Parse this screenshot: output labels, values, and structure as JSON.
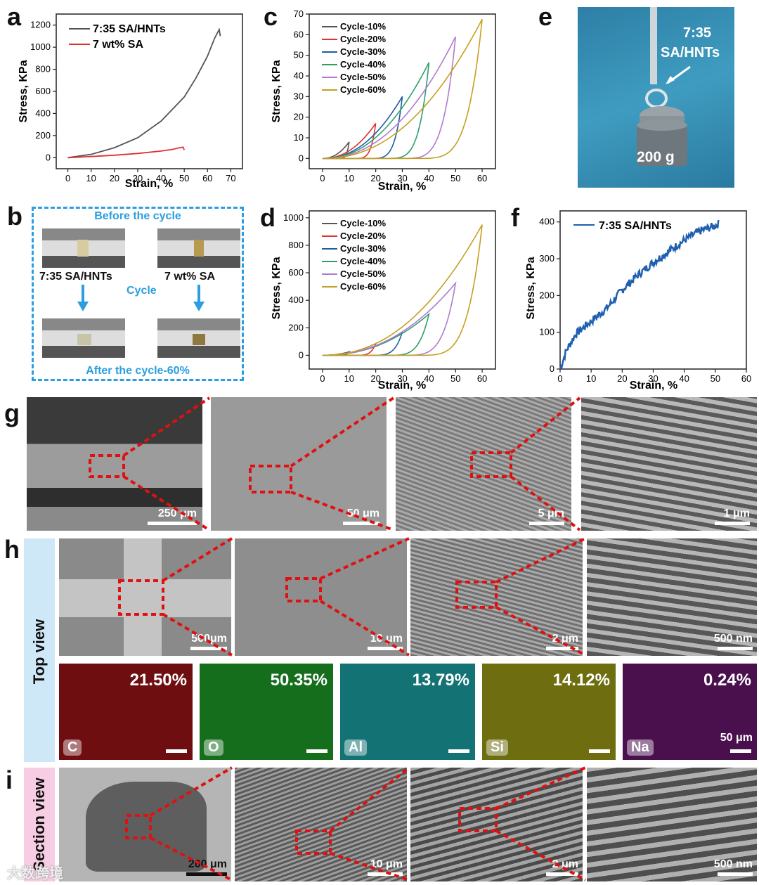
{
  "panels": {
    "a": "a",
    "b": "b",
    "c": "c",
    "d": "d",
    "e": "e",
    "f": "f",
    "g": "g",
    "h": "h",
    "i": "i"
  },
  "chart_a": {
    "ylabel": "Stress, KPa",
    "xlabel": "Strain, %",
    "yticks": [
      "0",
      "200",
      "400",
      "600",
      "800",
      "1000",
      "1200"
    ],
    "xticks": [
      "0",
      "10",
      "20",
      "30",
      "40",
      "50",
      "60",
      "70"
    ],
    "legend": [
      "7:35 SA/HNTs",
      "7 wt% SA"
    ]
  },
  "chart_c": {
    "ylabel": "Stress, KPa",
    "xlabel": "Strain, %",
    "yticks": [
      "0",
      "10",
      "20",
      "30",
      "40",
      "50",
      "60",
      "70"
    ],
    "xticks": [
      "0",
      "10",
      "20",
      "30",
      "40",
      "50",
      "60"
    ],
    "legend": [
      "Cycle-10%",
      "Cycle-20%",
      "Cycle-30%",
      "Cycle-40%",
      "Cycle-50%",
      "Cycle-60%"
    ]
  },
  "chart_d": {
    "ylabel": "Stress, KPa",
    "xlabel": "Strain, %",
    "yticks": [
      "0",
      "200",
      "400",
      "600",
      "800",
      "1000"
    ],
    "xticks": [
      "0",
      "10",
      "20",
      "30",
      "40",
      "50",
      "60"
    ],
    "legend": [
      "Cycle-10%",
      "Cycle-20%",
      "Cycle-30%",
      "Cycle-40%",
      "Cycle-50%",
      "Cycle-60%"
    ]
  },
  "chart_f": {
    "ylabel": "Stress, KPa",
    "xlabel": "Strain, %",
    "yticks": [
      "0",
      "100",
      "200",
      "300",
      "400"
    ],
    "xticks": [
      "0",
      "10",
      "20",
      "30",
      "40",
      "50",
      "60"
    ],
    "legend": [
      "7:35 SA/HNTs"
    ]
  },
  "panel_b": {
    "top": "Before the cycle",
    "left_label": "7:35 SA/HNTs",
    "right_label": "7 wt% SA",
    "middle": "Cycle",
    "bottom": "After the cycle-60%"
  },
  "panel_e": {
    "sample": "7:35",
    "sample2": "SA/HNTs",
    "weight": "200 g"
  },
  "panel_g": {
    "scales": [
      "250 μm",
      "50 μm",
      "5 μm",
      "1 μm"
    ]
  },
  "panel_h": {
    "side": "Top view",
    "scales": [
      "500μm",
      "10 μm",
      "2 μm",
      "500 nm"
    ],
    "eds": [
      {
        "el": "C",
        "pct": "21.50%",
        "color": "#b01818"
      },
      {
        "el": "O",
        "pct": "50.35%",
        "color": "#23a22a"
      },
      {
        "el": "Al",
        "pct": "13.79%",
        "color": "#1ca6a8"
      },
      {
        "el": "Si",
        "pct": "14.12%",
        "color": "#b4b41e"
      },
      {
        "el": "Na",
        "pct": "0.24%",
        "color": "#9a2a9a"
      }
    ],
    "eds_scale": "50 μm"
  },
  "panel_i": {
    "side": "Section view",
    "scales": [
      "200 μm",
      "10 μm",
      "2 μm",
      "500 nm"
    ]
  },
  "watermark": "大数跨境",
  "chart_data": [
    {
      "type": "line",
      "panel": "a",
      "xlabel": "Strain, %",
      "ylabel": "Stress, KPa",
      "xlim": [
        -5,
        75
      ],
      "ylim": [
        -100,
        1300
      ],
      "series": [
        {
          "name": "7:35 SA/HNTs",
          "color": "#555555",
          "x": [
            0,
            10,
            20,
            30,
            40,
            50,
            55,
            60,
            63,
            65,
            65.5
          ],
          "y": [
            0,
            30,
            90,
            180,
            330,
            550,
            720,
            920,
            1080,
            1160,
            1100
          ]
        },
        {
          "name": "7 wt% SA",
          "color": "#e03030",
          "x": [
            0,
            10,
            20,
            30,
            40,
            45,
            48,
            49.5,
            50
          ],
          "y": [
            0,
            10,
            22,
            38,
            60,
            75,
            90,
            95,
            70
          ]
        }
      ]
    },
    {
      "type": "line",
      "panel": "c",
      "xlabel": "Strain, %",
      "ylabel": "Stress, KPa",
      "xlim": [
        -5,
        65
      ],
      "ylim": [
        -5,
        70
      ],
      "series": [
        {
          "name": "Cycle-10%",
          "color": "#555555",
          "peak_x": 10,
          "peak_y": 8
        },
        {
          "name": "Cycle-20%",
          "color": "#e03030",
          "peak_x": 20,
          "peak_y": 17
        },
        {
          "name": "Cycle-30%",
          "color": "#1f5f9f",
          "peak_x": 30,
          "peak_y": 30
        },
        {
          "name": "Cycle-40%",
          "color": "#2ea06a",
          "peak_x": 40,
          "peak_y": 46.5
        },
        {
          "name": "Cycle-50%",
          "color": "#b07ad0",
          "peak_x": 50,
          "peak_y": 59
        },
        {
          "name": "Cycle-60%",
          "color": "#c4a020",
          "peak_x": 60,
          "peak_y": 67.5
        }
      ]
    },
    {
      "type": "line",
      "panel": "d",
      "xlabel": "Strain, %",
      "ylabel": "Stress, KPa",
      "xlim": [
        -5,
        65
      ],
      "ylim": [
        -100,
        1050
      ],
      "series": [
        {
          "name": "Cycle-10%",
          "color": "#555555",
          "peak_x": 10,
          "peak_y": 25
        },
        {
          "name": "Cycle-20%",
          "color": "#e03030",
          "peak_x": 20,
          "peak_y": 85
        },
        {
          "name": "Cycle-30%",
          "color": "#1f5f9f",
          "peak_x": 30,
          "peak_y": 170
        },
        {
          "name": "Cycle-40%",
          "color": "#2ea06a",
          "peak_x": 40,
          "peak_y": 300
        },
        {
          "name": "Cycle-50%",
          "color": "#b07ad0",
          "peak_x": 50,
          "peak_y": 525
        },
        {
          "name": "Cycle-60%",
          "color": "#c4a020",
          "peak_x": 60,
          "peak_y": 950
        }
      ]
    },
    {
      "type": "line",
      "panel": "f",
      "xlabel": "Strain, %",
      "ylabel": "Stress, KPa",
      "xlim": [
        0,
        60
      ],
      "ylim": [
        0,
        430
      ],
      "series": [
        {
          "name": "7:35 SA/HNTs",
          "color": "#1f5fb0",
          "x": [
            0,
            2,
            5,
            10,
            15,
            20,
            25,
            30,
            35,
            40,
            45,
            50,
            51
          ],
          "y": [
            0,
            50,
            95,
            130,
            165,
            215,
            255,
            290,
            320,
            350,
            375,
            390,
            395
          ]
        }
      ]
    }
  ]
}
